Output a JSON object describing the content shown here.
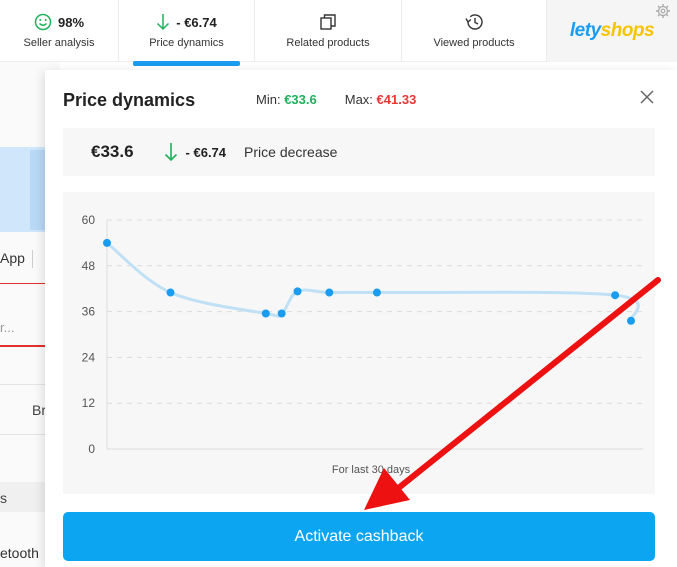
{
  "toolbar": {
    "seller": {
      "value": "98%",
      "label": "Seller analysis"
    },
    "price": {
      "value": "- €6.74",
      "label": "Price dynamics"
    },
    "related": {
      "label": "Related products"
    },
    "viewed": {
      "label": "Viewed products"
    },
    "logo": {
      "part1": "lety",
      "part2": "shops"
    }
  },
  "background_page": {
    "app_text": "App",
    "input_text": "r...",
    "br_text": "Br",
    "s_text": "s",
    "bt_text": "etooth"
  },
  "panel": {
    "title": "Price dynamics",
    "min_label": "Min:",
    "min_value": "€33.6",
    "max_label": "Max:",
    "max_value": "€41.33",
    "current_price": "€33.6",
    "delta": "- €6.74",
    "delta_desc": "Price decrease",
    "button_label": "Activate cashback"
  },
  "colors": {
    "accent": "#0ba5f2",
    "min": "#1fb15b",
    "max": "#e53935",
    "line": "#bfe0f5",
    "point": "#1a9cf0"
  },
  "icons": {
    "seller": "smile-icon",
    "price": "arrow-down-icon",
    "related": "copy-icon",
    "viewed": "history-icon",
    "settings": "gear-icon",
    "close": "close-icon"
  },
  "chart_data": {
    "type": "line",
    "xlabel": "For last 30 days",
    "ylabel": "",
    "ylim": [
      0,
      60
    ],
    "yticks": [
      "0",
      "12",
      "24",
      "36",
      "48",
      "60"
    ],
    "grid": true,
    "series": [
      {
        "values": [
          {
            "x": 0,
            "y": 54
          },
          {
            "x": 4,
            "y": 41
          },
          {
            "x": 10,
            "y": 35.5
          },
          {
            "x": 11,
            "y": 35.5
          },
          {
            "x": 12,
            "y": 41.3
          },
          {
            "x": 14,
            "y": 41
          },
          {
            "x": 17,
            "y": 41
          },
          {
            "x": 32,
            "y": 40.3
          },
          {
            "x": 33,
            "y": 33.6
          }
        ]
      }
    ]
  }
}
